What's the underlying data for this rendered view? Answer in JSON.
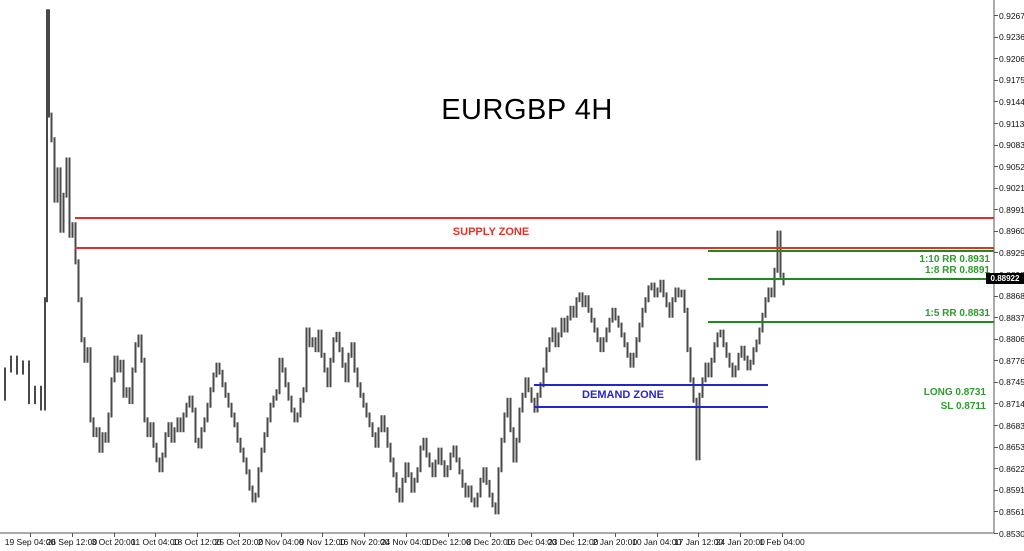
{
  "title": "EURGBP 4H",
  "colors": {
    "supply_line": "#e23228",
    "demand_line": "#2525cc",
    "rr_line": "#1f8a1f",
    "rr_text": "#2e9b2e",
    "bars": "#4a4a4a",
    "axis": "#555555",
    "tag_bg": "#000000",
    "tag_text": "#ffffff"
  },
  "overlays": {
    "supply_zone": {
      "label": "SUPPLY ZONE",
      "top_price": 0.8978,
      "bottom_price": 0.8936
    },
    "demand_zone": {
      "label": "DEMAND ZONE",
      "top_price": 0.8741,
      "bottom_price": 0.871
    },
    "rr_levels": [
      {
        "label": "1:10 RR 0.8931",
        "price": 0.8931,
        "label_side": "below"
      },
      {
        "label": "1:8 RR 0.8891",
        "price": 0.8891,
        "label_side": "above"
      },
      {
        "label": "1:5 RR 0.8831",
        "price": 0.8831,
        "label_side": "above"
      }
    ],
    "trade_labels": [
      {
        "label": "LONG 0.8731",
        "price": 0.8731
      },
      {
        "label": "SL 0.8711",
        "price": 0.8711
      }
    ],
    "current_price": "0.88922"
  },
  "chart_data": {
    "type": "ohlc_bar",
    "symbol": "EURGBP",
    "timeframe": "4H",
    "title": "EURGBP 4H",
    "grid": false,
    "price_range": [
      0.853,
      0.92675
    ],
    "y_ticks": [
      "0.92675",
      "0.92365",
      "0.92060",
      "0.91750",
      "0.91445",
      "0.91135",
      "0.90830",
      "0.90525",
      "0.90215",
      "0.89910",
      "0.89600",
      "0.89295",
      "0.88985",
      "0.88680",
      "0.88375",
      "0.88065",
      "0.87760",
      "0.87450",
      "0.87145",
      "0.86835",
      "0.86530",
      "0.86225",
      "0.85915",
      "0.85610",
      "0.85300"
    ],
    "x_ticks": [
      "19 Sep 04:00",
      "26 Sep 12:00",
      "3 Oct 20:00",
      "11 Oct 04:00",
      "18 Oct 12:00",
      "25 Oct 20:00",
      "2 Nov 04:00",
      "9 Nov 12:00",
      "16 Nov 20:00",
      "24 Nov 04:00",
      "1 Dec 12:00",
      "8 Dec 20:00",
      "16 Dec 04:00",
      "23 Dec 12:00",
      "2 Jan 20:00",
      "10 Jan 04:00",
      "17 Jan 12:00",
      "24 Jan 20:00",
      "1 Feb 04:00"
    ],
    "price_path": [
      [
        2,
        0.8722
      ],
      [
        8,
        0.8762
      ],
      [
        14,
        0.8779
      ],
      [
        20,
        0.8759
      ],
      [
        26,
        0.8772
      ],
      [
        32,
        0.8717
      ],
      [
        38,
        0.8736
      ],
      [
        44,
        0.8708
      ],
      [
        46,
        0.8862
      ],
      [
        48,
        0.9272
      ],
      [
        50,
        0.9125
      ],
      [
        53,
        0.909
      ],
      [
        56,
        0.9004
      ],
      [
        59,
        0.9047
      ],
      [
        62,
        0.8961
      ],
      [
        65,
        0.9011
      ],
      [
        68,
        0.9061
      ],
      [
        71,
        0.8954
      ],
      [
        74,
        0.8969
      ],
      [
        77,
        0.8916
      ],
      [
        80,
        0.8862
      ],
      [
        83,
        0.8805
      ],
      [
        86,
        0.8776
      ],
      [
        89,
        0.8791
      ],
      [
        92,
        0.8691
      ],
      [
        95,
        0.867
      ],
      [
        98,
        0.8677
      ],
      [
        101,
        0.8648
      ],
      [
        104,
        0.867
      ],
      [
        107,
        0.8662
      ],
      [
        110,
        0.8698
      ],
      [
        113,
        0.8748
      ],
      [
        116,
        0.8779
      ],
      [
        119,
        0.8762
      ],
      [
        122,
        0.8773
      ],
      [
        125,
        0.8726
      ],
      [
        128,
        0.8734
      ],
      [
        131,
        0.8717
      ],
      [
        134,
        0.8762
      ],
      [
        137,
        0.8798
      ],
      [
        140,
        0.8809
      ],
      [
        143,
        0.8776
      ],
      [
        146,
        0.8691
      ],
      [
        149,
        0.867
      ],
      [
        152,
        0.8684
      ],
      [
        155,
        0.8655
      ],
      [
        158,
        0.8634
      ],
      [
        161,
        0.862
      ],
      [
        164,
        0.8641
      ],
      [
        167,
        0.867
      ],
      [
        170,
        0.8684
      ],
      [
        173,
        0.8662
      ],
      [
        176,
        0.8677
      ],
      [
        179,
        0.8691
      ],
      [
        182,
        0.8677
      ],
      [
        185,
        0.8698
      ],
      [
        188,
        0.8712
      ],
      [
        191,
        0.8722
      ],
      [
        194,
        0.8705
      ],
      [
        197,
        0.8662
      ],
      [
        200,
        0.8654
      ],
      [
        203,
        0.8677
      ],
      [
        206,
        0.8691
      ],
      [
        209,
        0.8712
      ],
      [
        212,
        0.8734
      ],
      [
        215,
        0.8755
      ],
      [
        218,
        0.8769
      ],
      [
        221,
        0.8759
      ],
      [
        224,
        0.8741
      ],
      [
        227,
        0.8726
      ],
      [
        230,
        0.8712
      ],
      [
        233,
        0.8698
      ],
      [
        236,
        0.8684
      ],
      [
        239,
        0.8662
      ],
      [
        242,
        0.8648
      ],
      [
        245,
        0.8634
      ],
      [
        248,
        0.8617
      ],
      [
        251,
        0.8594
      ],
      [
        254,
        0.8577
      ],
      [
        257,
        0.8584
      ],
      [
        260,
        0.862
      ],
      [
        263,
        0.8648
      ],
      [
        266,
        0.867
      ],
      [
        269,
        0.8691
      ],
      [
        272,
        0.8712
      ],
      [
        275,
        0.8722
      ],
      [
        278,
        0.8731
      ],
      [
        281,
        0.8776
      ],
      [
        284,
        0.8762
      ],
      [
        287,
        0.8741
      ],
      [
        290,
        0.8722
      ],
      [
        293,
        0.8705
      ],
      [
        296,
        0.8691
      ],
      [
        299,
        0.8698
      ],
      [
        302,
        0.8719
      ],
      [
        305,
        0.8734
      ],
      [
        308,
        0.8819
      ],
      [
        311,
        0.8798
      ],
      [
        314,
        0.8805
      ],
      [
        317,
        0.8791
      ],
      [
        320,
        0.8816
      ],
      [
        323,
        0.8783
      ],
      [
        326,
        0.8762
      ],
      [
        329,
        0.8741
      ],
      [
        332,
        0.8776
      ],
      [
        335,
        0.8805
      ],
      [
        338,
        0.8813
      ],
      [
        341,
        0.8791
      ],
      [
        344,
        0.8769
      ],
      [
        347,
        0.8748
      ],
      [
        350,
        0.8783
      ],
      [
        353,
        0.8798
      ],
      [
        356,
        0.8762
      ],
      [
        359,
        0.8741
      ],
      [
        362,
        0.8726
      ],
      [
        365,
        0.8712
      ],
      [
        368,
        0.8698
      ],
      [
        371,
        0.8684
      ],
      [
        374,
        0.867
      ],
      [
        377,
        0.8655
      ],
      [
        380,
        0.8677
      ],
      [
        383,
        0.8694
      ],
      [
        386,
        0.8677
      ],
      [
        389,
        0.8655
      ],
      [
        392,
        0.8634
      ],
      [
        395,
        0.8613
      ],
      [
        398,
        0.8591
      ],
      [
        401,
        0.8577
      ],
      [
        404,
        0.8605
      ],
      [
        407,
        0.8627
      ],
      [
        410,
        0.8613
      ],
      [
        413,
        0.8591
      ],
      [
        416,
        0.8605
      ],
      [
        419,
        0.862
      ],
      [
        422,
        0.8651
      ],
      [
        425,
        0.8662
      ],
      [
        428,
        0.8641
      ],
      [
        431,
        0.8627
      ],
      [
        434,
        0.8613
      ],
      [
        437,
        0.8631
      ],
      [
        440,
        0.8648
      ],
      [
        443,
        0.863
      ],
      [
        446,
        0.8613
      ],
      [
        449,
        0.8623
      ],
      [
        452,
        0.8641
      ],
      [
        455,
        0.8651
      ],
      [
        458,
        0.8634
      ],
      [
        461,
        0.8617
      ],
      [
        464,
        0.8598
      ],
      [
        467,
        0.8584
      ],
      [
        470,
        0.8594
      ],
      [
        473,
        0.8577
      ],
      [
        476,
        0.857
      ],
      [
        479,
        0.8584
      ],
      [
        482,
        0.8605
      ],
      [
        485,
        0.862
      ],
      [
        488,
        0.8602
      ],
      [
        491,
        0.8584
      ],
      [
        494,
        0.857
      ],
      [
        497,
        0.856
      ],
      [
        500,
        0.862
      ],
      [
        503,
        0.8662
      ],
      [
        506,
        0.8698
      ],
      [
        509,
        0.8719
      ],
      [
        512,
        0.8677
      ],
      [
        515,
        0.8634
      ],
      [
        518,
        0.8662
      ],
      [
        521,
        0.8705
      ],
      [
        524,
        0.8726
      ],
      [
        527,
        0.8748
      ],
      [
        530,
        0.8734
      ],
      [
        533,
        0.8719
      ],
      [
        536,
        0.8705
      ],
      [
        539,
        0.8726
      ],
      [
        542,
        0.8741
      ],
      [
        545,
        0.8762
      ],
      [
        548,
        0.8791
      ],
      [
        551,
        0.8805
      ],
      [
        554,
        0.8819
      ],
      [
        557,
        0.8798
      ],
      [
        560,
        0.8812
      ],
      [
        563,
        0.8833
      ],
      [
        566,
        0.8819
      ],
      [
        569,
        0.8836
      ],
      [
        572,
        0.885
      ],
      [
        575,
        0.884
      ],
      [
        578,
        0.8862
      ],
      [
        581,
        0.8869
      ],
      [
        584,
        0.8855
      ],
      [
        587,
        0.8865
      ],
      [
        590,
        0.8847
      ],
      [
        593,
        0.8833
      ],
      [
        596,
        0.8819
      ],
      [
        599,
        0.8805
      ],
      [
        602,
        0.8791
      ],
      [
        605,
        0.8805
      ],
      [
        608,
        0.8819
      ],
      [
        611,
        0.8833
      ],
      [
        614,
        0.8847
      ],
      [
        617,
        0.8836
      ],
      [
        620,
        0.8826
      ],
      [
        623,
        0.8812
      ],
      [
        626,
        0.8798
      ],
      [
        629,
        0.8783
      ],
      [
        632,
        0.8769
      ],
      [
        635,
        0.8783
      ],
      [
        638,
        0.8805
      ],
      [
        641,
        0.8826
      ],
      [
        644,
        0.8847
      ],
      [
        647,
        0.8862
      ],
      [
        650,
        0.8879
      ],
      [
        653,
        0.8883
      ],
      [
        656,
        0.8869
      ],
      [
        659,
        0.8876
      ],
      [
        662,
        0.8887
      ],
      [
        665,
        0.8869
      ],
      [
        668,
        0.8855
      ],
      [
        671,
        0.884
      ],
      [
        674,
        0.8862
      ],
      [
        677,
        0.8876
      ],
      [
        680,
        0.8869
      ],
      [
        683,
        0.8873
      ],
      [
        686,
        0.8847
      ],
      [
        689,
        0.8791
      ],
      [
        692,
        0.8748
      ],
      [
        695,
        0.8719
      ],
      [
        698,
        0.8637
      ],
      [
        701,
        0.8726
      ],
      [
        704,
        0.8748
      ],
      [
        707,
        0.8769
      ],
      [
        710,
        0.8755
      ],
      [
        713,
        0.8776
      ],
      [
        716,
        0.8798
      ],
      [
        719,
        0.8812
      ],
      [
        722,
        0.8816
      ],
      [
        725,
        0.8798
      ],
      [
        728,
        0.8783
      ],
      [
        731,
        0.8769
      ],
      [
        734,
        0.8755
      ],
      [
        737,
        0.8765
      ],
      [
        740,
        0.8783
      ],
      [
        743,
        0.8793
      ],
      [
        746,
        0.8779
      ],
      [
        749,
        0.8765
      ],
      [
        752,
        0.8773
      ],
      [
        755,
        0.8791
      ],
      [
        758,
        0.8802
      ],
      [
        761,
        0.8819
      ],
      [
        764,
        0.884
      ],
      [
        767,
        0.8862
      ],
      [
        770,
        0.8876
      ],
      [
        773,
        0.8869
      ],
      [
        776,
        0.8904
      ],
      [
        779,
        0.8957
      ],
      [
        782,
        0.8897
      ],
      [
        785,
        0.8886
      ]
    ]
  }
}
